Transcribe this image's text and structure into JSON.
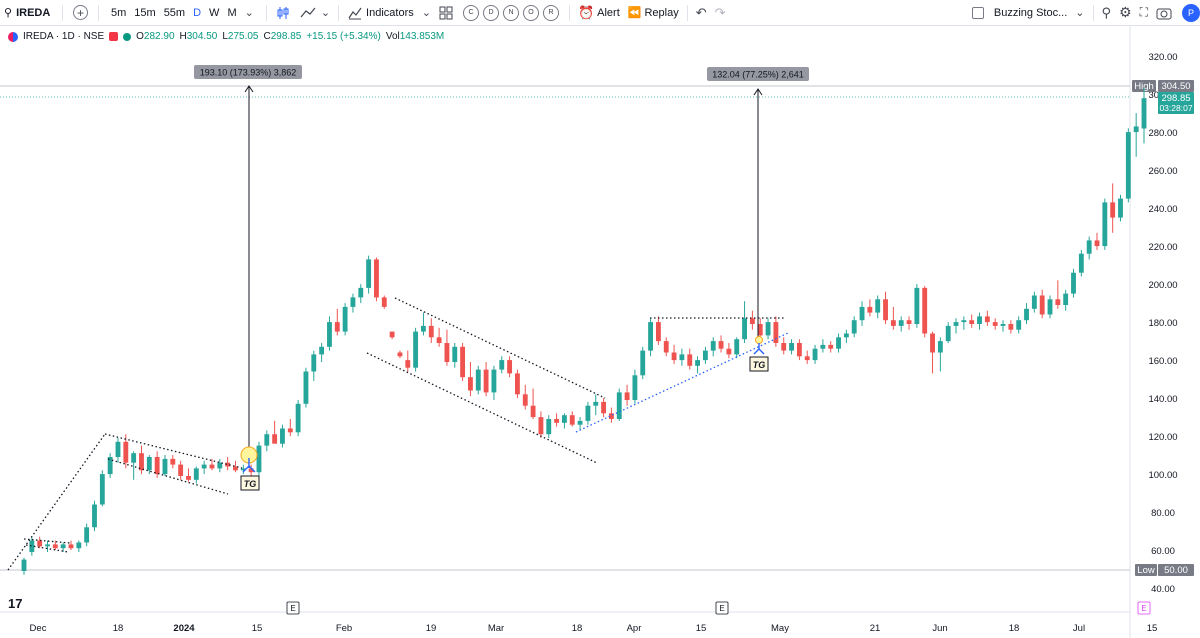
{
  "toolbar": {
    "symbol": "IREDA",
    "timeframes": [
      "5m",
      "15m",
      "55m",
      "D",
      "W",
      "M"
    ],
    "active_timeframe": "D",
    "indicators_label": "Indicators",
    "circle_buttons": [
      "C",
      "D",
      "N",
      "O",
      "R"
    ],
    "alert_label": "Alert",
    "replay_label": "Replay",
    "watchlist_label": "Buzzing Stoc...",
    "avatar_letter": "P"
  },
  "legend": {
    "title": "IREDA · 1D · NSE",
    "open_key": "O",
    "open": "282.90",
    "high_key": "H",
    "high": "304.50",
    "low_key": "L",
    "low": "275.05",
    "close_key": "C",
    "close": "298.85",
    "change": "+15.15 (+5.34%)",
    "vol_key": "Vol",
    "volume": "143.853M"
  },
  "price_axis": {
    "labels": [
      "320.00",
      "300.00",
      "280.00",
      "260.00",
      "240.00",
      "220.00",
      "200.00",
      "180.00",
      "160.00",
      "140.00",
      "120.00",
      "100.00",
      "80.00",
      "60.00",
      "40.00"
    ],
    "high_tag": "High",
    "high_value": "304.50",
    "last_price": "298.85",
    "countdown": "03:28:07",
    "low_tag": "Low",
    "low_value": "50.00"
  },
  "time_axis": {
    "labels": [
      "Dec",
      "18",
      "2024",
      "15",
      "Feb",
      "19",
      "Mar",
      "18",
      "Apr",
      "15",
      "May",
      "21",
      "Jun",
      "18",
      "Jul",
      "15"
    ]
  },
  "annotations": {
    "measure1": "193.10 (173.93%) 3,862",
    "measure2": "132.04 (77.25%) 2,641",
    "tg1": "TG",
    "tg2": "TG",
    "earnings_marker": "E",
    "earnings_marker_future": "E",
    "logo": "17"
  },
  "chart_data": {
    "type": "candlestick",
    "y_range": [
      35,
      328
    ],
    "up_color": "#26a69a",
    "down_color": "#ef5350",
    "candles": [
      [
        50,
        57,
        48,
        56
      ],
      [
        60,
        68,
        58,
        66
      ],
      [
        66,
        68,
        62,
        63
      ],
      [
        63,
        66,
        60,
        64
      ],
      [
        64,
        66,
        61,
        62
      ],
      [
        62,
        65,
        60,
        64
      ],
      [
        64,
        66,
        61,
        62
      ],
      [
        62,
        66,
        60,
        65
      ],
      [
        65,
        75,
        63,
        73
      ],
      [
        73,
        87,
        71,
        85
      ],
      [
        85,
        103,
        84,
        101
      ],
      [
        101,
        112,
        99,
        110
      ],
      [
        110,
        120,
        107,
        118
      ],
      [
        118,
        122,
        104,
        107
      ],
      [
        107,
        113,
        98,
        112
      ],
      [
        112,
        116,
        101,
        103
      ],
      [
        103,
        111,
        101,
        110
      ],
      [
        110,
        113,
        99,
        101
      ],
      [
        101,
        111,
        100,
        109
      ],
      [
        109,
        111,
        104,
        106
      ],
      [
        106,
        108,
        98,
        100
      ],
      [
        100,
        104,
        97,
        98
      ],
      [
        98,
        105,
        96,
        104
      ],
      [
        104,
        108,
        101,
        106
      ],
      [
        106,
        109,
        103,
        104
      ],
      [
        104,
        109,
        102,
        107
      ],
      [
        107,
        110,
        103,
        105
      ],
      [
        105,
        108,
        102,
        103
      ],
      [
        103,
        106,
        101,
        104
      ],
      [
        104,
        106,
        100,
        102
      ],
      [
        102,
        118,
        100,
        116
      ],
      [
        116,
        124,
        113,
        122
      ],
      [
        122,
        129,
        118,
        117
      ],
      [
        117,
        127,
        115,
        125
      ],
      [
        125,
        130,
        121,
        123
      ],
      [
        123,
        140,
        121,
        138
      ],
      [
        138,
        157,
        136,
        155
      ],
      [
        155,
        166,
        150,
        164
      ],
      [
        164,
        170,
        160,
        168
      ],
      [
        168,
        184,
        166,
        181
      ],
      [
        181,
        188,
        174,
        176
      ],
      [
        176,
        191,
        174,
        189
      ],
      [
        189,
        196,
        186,
        194
      ],
      [
        194,
        201,
        191,
        199
      ],
      [
        199,
        216,
        196,
        214
      ],
      [
        214,
        215,
        192,
        194
      ],
      [
        194,
        195,
        188,
        189
      ],
      [
        176,
        176,
        172,
        173
      ],
      [
        165,
        166,
        162,
        163
      ],
      [
        161,
        166,
        155,
        157
      ],
      [
        157,
        178,
        155,
        176
      ],
      [
        176,
        186,
        174,
        179
      ],
      [
        179,
        183,
        170,
        173
      ],
      [
        173,
        178,
        168,
        170
      ],
      [
        170,
        177,
        158,
        160
      ],
      [
        160,
        170,
        157,
        168
      ],
      [
        168,
        170,
        150,
        152
      ],
      [
        152,
        160,
        142,
        145
      ],
      [
        145,
        158,
        143,
        156
      ],
      [
        156,
        160,
        142,
        144
      ],
      [
        144,
        158,
        140,
        156
      ],
      [
        156,
        163,
        154,
        161
      ],
      [
        161,
        163,
        152,
        154
      ],
      [
        154,
        156,
        141,
        143
      ],
      [
        143,
        148,
        135,
        137
      ],
      [
        137,
        146,
        130,
        131
      ],
      [
        131,
        134,
        120,
        122
      ],
      [
        122,
        132,
        120,
        130
      ],
      [
        130,
        133,
        126,
        128
      ],
      [
        128,
        133,
        125,
        132
      ],
      [
        132,
        134,
        126,
        127
      ],
      [
        127,
        131,
        124,
        129
      ],
      [
        129,
        139,
        127,
        137
      ],
      [
        137,
        143,
        132,
        139
      ],
      [
        139,
        141,
        131,
        133
      ],
      [
        133,
        136,
        128,
        130
      ],
      [
        130,
        146,
        129,
        144
      ],
      [
        144,
        148,
        137,
        140
      ],
      [
        140,
        156,
        138,
        153
      ],
      [
        153,
        168,
        151,
        166
      ],
      [
        166,
        183,
        163,
        181
      ],
      [
        181,
        184,
        169,
        171
      ],
      [
        171,
        173,
        163,
        165
      ],
      [
        165,
        169,
        159,
        161
      ],
      [
        161,
        167,
        158,
        164
      ],
      [
        164,
        167,
        156,
        158
      ],
      [
        158,
        163,
        154,
        161
      ],
      [
        161,
        168,
        159,
        166
      ],
      [
        166,
        173,
        163,
        171
      ],
      [
        171,
        174,
        165,
        167
      ],
      [
        167,
        170,
        162,
        164
      ],
      [
        164,
        173,
        162,
        172
      ],
      [
        172,
        192,
        170,
        183
      ],
      [
        183,
        187,
        177,
        180
      ],
      [
        180,
        183,
        172,
        174
      ],
      [
        174,
        183,
        172,
        181
      ],
      [
        181,
        184,
        168,
        170
      ],
      [
        170,
        173,
        164,
        166
      ],
      [
        166,
        172,
        164,
        170
      ],
      [
        170,
        172,
        161,
        163
      ],
      [
        163,
        166,
        159,
        161
      ],
      [
        161,
        169,
        159,
        167
      ],
      [
        167,
        172,
        165,
        169
      ],
      [
        169,
        171,
        165,
        167
      ],
      [
        167,
        175,
        165,
        173
      ],
      [
        173,
        177,
        170,
        175
      ],
      [
        175,
        184,
        173,
        182
      ],
      [
        182,
        192,
        179,
        189
      ],
      [
        189,
        193,
        184,
        186
      ],
      [
        186,
        195,
        183,
        193
      ],
      [
        193,
        197,
        180,
        182
      ],
      [
        182,
        189,
        177,
        179
      ],
      [
        179,
        184,
        176,
        182
      ],
      [
        182,
        184,
        177,
        180
      ],
      [
        180,
        201,
        178,
        199
      ],
      [
        199,
        200,
        173,
        175
      ],
      [
        175,
        176,
        154,
        165
      ],
      [
        165,
        173,
        155,
        171
      ],
      [
        171,
        181,
        170,
        179
      ],
      [
        179,
        183,
        175,
        181
      ],
      [
        181,
        184,
        177,
        182
      ],
      [
        182,
        185,
        178,
        180
      ],
      [
        180,
        186,
        177,
        184
      ],
      [
        184,
        187,
        179,
        181
      ],
      [
        181,
        183,
        177,
        179
      ],
      [
        179,
        182,
        176,
        180
      ],
      [
        180,
        182,
        175,
        177
      ],
      [
        177,
        184,
        175,
        182
      ],
      [
        182,
        191,
        180,
        188
      ],
      [
        188,
        197,
        186,
        195
      ],
      [
        195,
        198,
        183,
        185
      ],
      [
        185,
        195,
        183,
        193
      ],
      [
        193,
        203,
        188,
        190
      ],
      [
        190,
        198,
        187,
        196
      ],
      [
        196,
        209,
        194,
        207
      ],
      [
        207,
        219,
        205,
        217
      ],
      [
        217,
        226,
        214,
        224
      ],
      [
        224,
        228,
        219,
        221
      ],
      [
        221,
        246,
        219,
        244
      ],
      [
        244,
        254,
        228,
        236
      ],
      [
        236,
        248,
        234,
        246
      ],
      [
        246,
        283,
        244,
        281
      ],
      [
        281,
        291,
        268,
        284
      ],
      [
        282.9,
        304.5,
        275.05,
        298.85
      ]
    ]
  }
}
